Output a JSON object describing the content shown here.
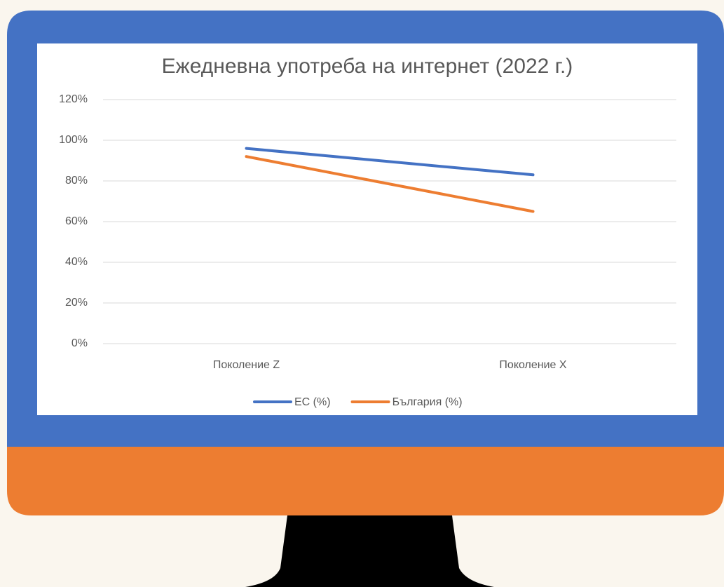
{
  "chart_data": {
    "type": "line",
    "title": "Ежедневна употреба на интернет (2022 г.)",
    "categories": [
      "Поколение Z",
      "Поколение X"
    ],
    "series": [
      {
        "name": "ЕС (%)",
        "color": "#4472c4",
        "values": [
          96,
          83
        ]
      },
      {
        "name": "България (%)",
        "color": "#ed7d31",
        "values": [
          92,
          65
        ]
      }
    ],
    "ylim": [
      0,
      120
    ],
    "yticks": [
      {
        "value": 0,
        "label": "0%"
      },
      {
        "value": 20,
        "label": "20%"
      },
      {
        "value": 40,
        "label": "40%"
      },
      {
        "value": 60,
        "label": "60%"
      },
      {
        "value": 80,
        "label": "80%"
      },
      {
        "value": 100,
        "label": "100%"
      },
      {
        "value": 120,
        "label": "120%"
      }
    ],
    "grid": true,
    "legend": "bottom"
  }
}
